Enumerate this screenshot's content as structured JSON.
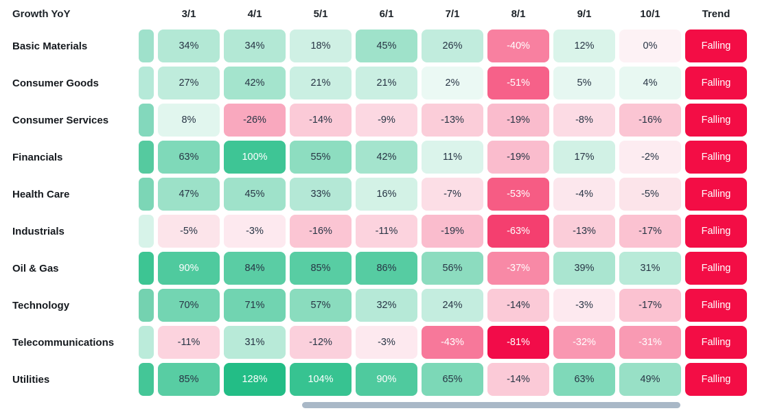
{
  "title": "Growth YoY",
  "chart_data": {
    "type": "heatmap",
    "title": "Growth YoY",
    "unit": "%",
    "columns": [
      "3/1",
      "4/1",
      "5/1",
      "6/1",
      "7/1",
      "8/1",
      "9/1",
      "10/1"
    ],
    "trend_column_label": "Trend",
    "rows": [
      {
        "label": "Basic Materials",
        "values": [
          34,
          34,
          18,
          45,
          26,
          -40,
          12,
          0
        ],
        "trend": "Falling",
        "edge_color": "#9FE1CB"
      },
      {
        "label": "Consumer Goods",
        "values": [
          27,
          42,
          21,
          21,
          2,
          -51,
          5,
          4
        ],
        "trend": "Falling",
        "edge_color": "#B5E9D8"
      },
      {
        "label": "Consumer Services",
        "values": [
          8,
          -26,
          -14,
          -9,
          -13,
          -19,
          -8,
          -16
        ],
        "trend": "Falling",
        "edge_color": "#83D8BC"
      },
      {
        "label": "Financials",
        "values": [
          63,
          100,
          55,
          42,
          11,
          -19,
          17,
          -2
        ],
        "trend": "Falling",
        "edge_color": "#55CA9F"
      },
      {
        "label": "Health Care",
        "values": [
          47,
          45,
          33,
          16,
          -7,
          -53,
          -4,
          -5
        ],
        "trend": "Falling",
        "edge_color": "#7CD6B6"
      },
      {
        "label": "Industrials",
        "values": [
          -5,
          -3,
          -16,
          -11,
          -19,
          -63,
          -13,
          -17
        ],
        "trend": "Falling",
        "edge_color": "#D7F3E9"
      },
      {
        "label": "Oil & Gas",
        "values": [
          90,
          84,
          85,
          86,
          56,
          -37,
          39,
          31
        ],
        "trend": "Falling",
        "edge_color": "#3DC593"
      },
      {
        "label": "Technology",
        "values": [
          70,
          71,
          57,
          32,
          24,
          -14,
          -3,
          -17
        ],
        "trend": "Falling",
        "edge_color": "#74D2B0"
      },
      {
        "label": "Telecommunications",
        "values": [
          -11,
          31,
          -12,
          -3,
          -43,
          -81,
          -32,
          -31
        ],
        "trend": "Falling",
        "edge_color": "#BBEBDA"
      },
      {
        "label": "Utilities",
        "values": [
          85,
          128,
          104,
          90,
          65,
          -14,
          63,
          49
        ],
        "trend": "Falling",
        "edge_color": "#44C697"
      }
    ],
    "color_scale": {
      "positive_low": "#EFFAF6",
      "positive_high": "#23BD86",
      "positive_limit": 115,
      "negative_low": "#FDF2F5",
      "negative_high": "#F20C49",
      "negative_limit": 81,
      "white_text_positive_min": 88,
      "white_text_negative_max": -30
    },
    "grid": false,
    "legend_position": "none"
  },
  "colors": {
    "trend_badge": "#F30D45",
    "cell_text_dark": "#273444",
    "cell_text_light": "#FFFFFF",
    "scrollbar": "#A9B8C7"
  }
}
